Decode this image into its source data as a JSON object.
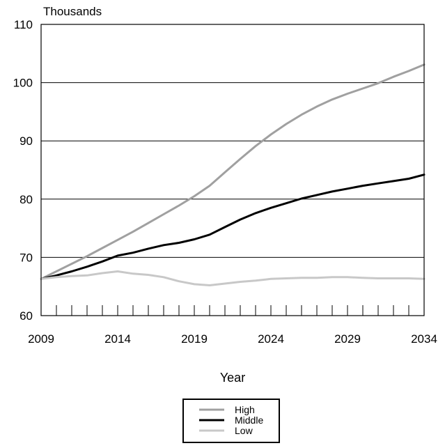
{
  "chart_data": {
    "type": "line",
    "ylabel": "Thousands",
    "xlabel": "Year",
    "x": [
      2009,
      2010,
      2011,
      2012,
      2013,
      2014,
      2015,
      2016,
      2017,
      2018,
      2019,
      2020,
      2021,
      2022,
      2023,
      2024,
      2025,
      2026,
      2027,
      2028,
      2029,
      2030,
      2031,
      2032,
      2033,
      2034
    ],
    "xticks": [
      "2009",
      "2014",
      "2019",
      "2024",
      "2029",
      "2034"
    ],
    "yticks": [
      "60",
      "70",
      "80",
      "90",
      "100",
      "110"
    ],
    "xlim": [
      2009,
      2034
    ],
    "ylim": [
      60,
      110
    ],
    "grid": "horizontal",
    "legend_position": "bottom-center",
    "series": [
      {
        "name": "High",
        "color": "#a0a0a0",
        "values": [
          66.3,
          67.6,
          68.9,
          70.2,
          71.6,
          73.0,
          74.4,
          75.9,
          77.4,
          78.9,
          80.5,
          82.3,
          84.6,
          86.9,
          89.1,
          91.1,
          92.9,
          94.5,
          95.9,
          97.1,
          98.1,
          99.0,
          99.9,
          101.0,
          102.0,
          103.1
        ]
      },
      {
        "name": "Middle",
        "color": "#000000",
        "values": [
          66.3,
          66.9,
          67.6,
          68.4,
          69.3,
          70.3,
          70.8,
          71.5,
          72.1,
          72.5,
          73.1,
          73.9,
          75.2,
          76.5,
          77.6,
          78.5,
          79.3,
          80.1,
          80.7,
          81.3,
          81.8,
          82.3,
          82.7,
          83.1,
          83.5,
          84.2
        ]
      },
      {
        "name": "Low",
        "color": "#c8c8c8",
        "values": [
          66.3,
          66.6,
          66.8,
          66.9,
          67.3,
          67.6,
          67.2,
          67.0,
          66.6,
          65.9,
          65.4,
          65.2,
          65.5,
          65.8,
          66.0,
          66.3,
          66.4,
          66.5,
          66.5,
          66.6,
          66.6,
          66.5,
          66.4,
          66.4,
          66.4,
          66.3
        ]
      }
    ]
  }
}
